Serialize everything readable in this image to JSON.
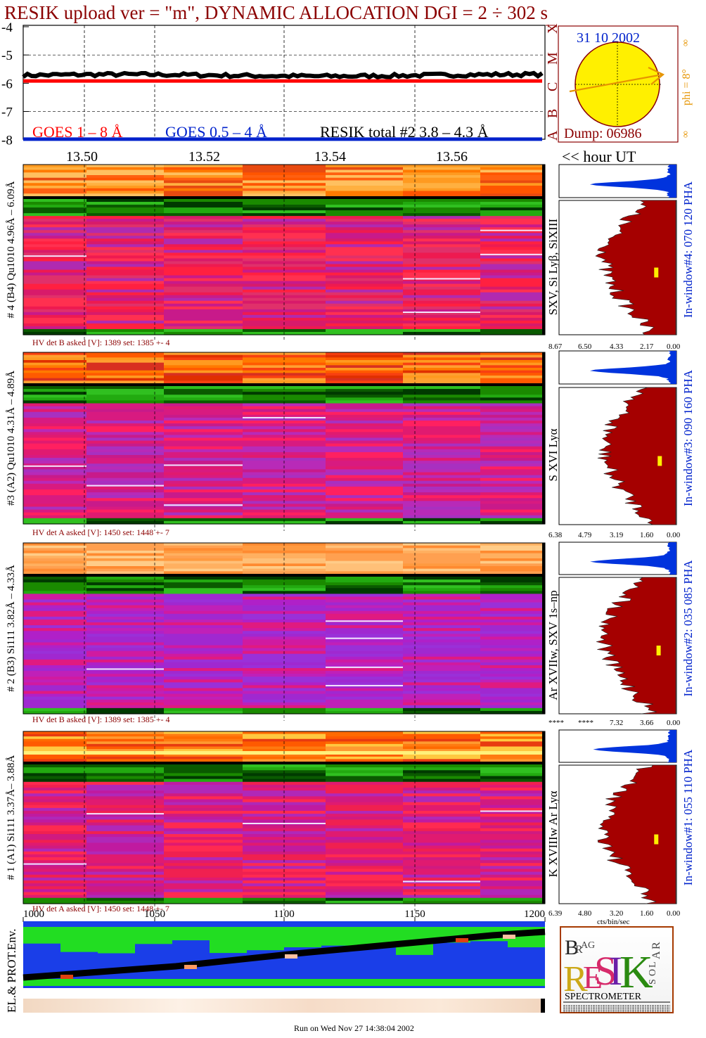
{
  "title": "RESIK upload ver = \"m\", DYNAMIC ALLOCATION  DGI =   2 ÷ 302 s",
  "footer": "Run on Wed Nov 27 14:38:04 2002",
  "colors": {
    "title": "#8b0000",
    "goes_long": "#ff0000",
    "goes_short": "#0022cc",
    "resik_total": "#000000",
    "pha_small": "#0033dd",
    "pha_big": "#a50000",
    "marker": "#ffee00",
    "sun": "#fff000",
    "env_bg": "#1a3ee8",
    "env_green": "#22dd22"
  },
  "goes_panel": {
    "y_ticks": [
      "-4",
      "-5",
      "-6",
      "-7",
      "-8"
    ],
    "legend": {
      "goes_long": "GOES 1 – 8 Å",
      "goes_short": "GOES 0.5 – 4 Å",
      "resik_total": "RESIK total #2  3.8 – 4.3 Å"
    },
    "class_labels": [
      "A",
      "B",
      "C",
      "M",
      "X"
    ]
  },
  "chart_data": [
    {
      "type": "line",
      "title": "",
      "xlabel": "<< hour UT",
      "x_ticks": [
        "13.50",
        "13.52",
        "13.54",
        "13.56"
      ],
      "ylim": [
        -8,
        -4
      ],
      "y_ticks": [
        -4,
        -5,
        -6,
        -7,
        -8
      ],
      "series": [
        {
          "name": "RESIK total #2  3.8 – 4.3 Å",
          "level": -5.72
        },
        {
          "name": "GOES 1 – 8 Å",
          "level": -5.92
        },
        {
          "name": "GOES 0.5 – 4 Å",
          "level": -7.98
        }
      ]
    },
    {
      "type": "heatmap",
      "panels": [
        {
          "label": "# 4 (B4) Qu1010 4.96Å – 6.09Å",
          "lines": "SXV, Si Lyβ, SiXIII",
          "pha": "In-window#4:  070 120 PHA",
          "hv": "HV det B asked [V]:  1389 set:  1385 +-    4",
          "scale": [
            "8.67",
            "6.50",
            "4.33",
            "2.17",
            "0.00"
          ],
          "marker": 0.75
        },
        {
          "label": "#3 (A2) Qu1010  4.31Å – 4.89Å",
          "lines": "S XVI Lyα",
          "pha": "In-window#3:  090 160 PHA",
          "hv": "HV det A asked [V]:  1450 set:  1448 +-    7",
          "scale": [
            "6.38",
            "4.79",
            "3.19",
            "1.60",
            "0.00"
          ],
          "marker": 0.78
        },
        {
          "label": "# 2 (B3) Si111  3.82Å – 4.33Å",
          "lines": "Ar XVIIw,  SXV  1s–np",
          "pha": "In-window#2:  035 085 PHA",
          "hv": "HV det B asked [V]:  1389 set:  1385 +-    4",
          "scale": [
            "****",
            "****",
            "7.32",
            "3.66",
            "0.00"
          ],
          "marker": 0.77
        },
        {
          "label": "# 1 (A1) Si111  3.37Å– 3.88Å",
          "lines": "K XVIIIw    Ar Lyα",
          "pha": "In-window#1:  055 110 PHA",
          "hv": "HV det A asked [V]:  1450 set:  1448 +-    7",
          "scale": [
            "6.39",
            "4.80",
            "3.20",
            "1.60",
            "0.00"
          ],
          "marker": 0.75,
          "scale_unit": "cts/bin/sec"
        }
      ]
    }
  ],
  "sun_panel": {
    "date": "31 10 2002",
    "dump": "Dump: 06986",
    "phi": "phi =  8°",
    "symbol": "∞"
  },
  "env_panel": {
    "label": "EL.& PROT.Env.",
    "x_ticks": [
      "1000",
      "1050",
      "1100",
      "1150",
      "1200"
    ]
  },
  "logo": {
    "letters": [
      "B",
      "R",
      "A",
      "G",
      "R",
      "E",
      "S",
      "I",
      "K",
      "S",
      "O",
      "L",
      "A",
      "R"
    ],
    "bottom": "SPECTROMETER"
  }
}
